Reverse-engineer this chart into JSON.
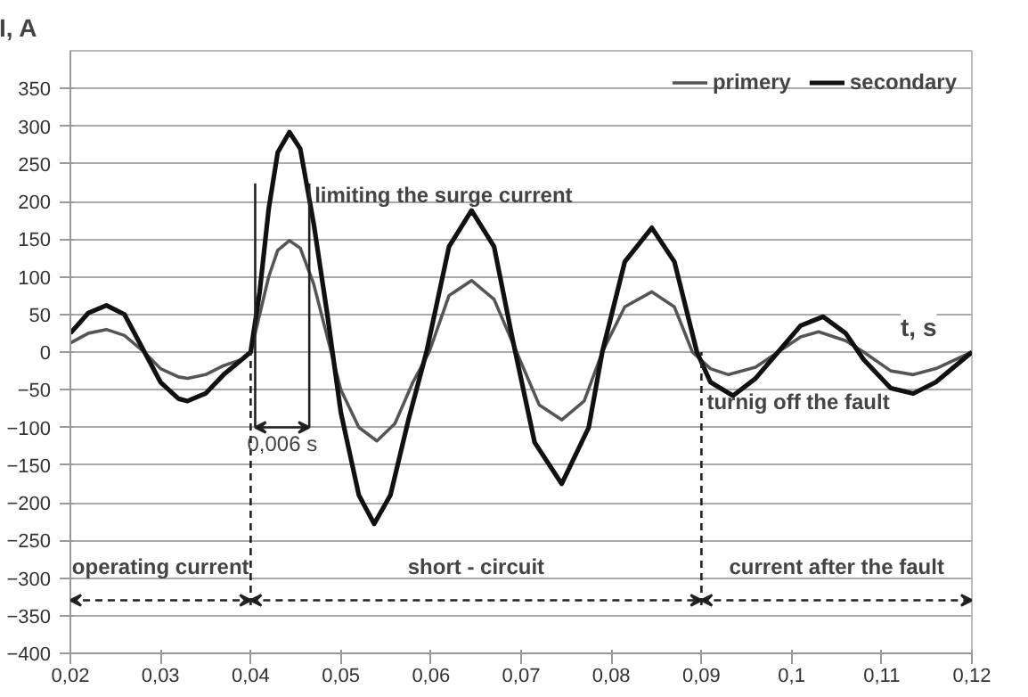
{
  "chart_data": {
    "type": "line",
    "xlabel": "t, s",
    "ylabel": "I, A",
    "xlim": [
      0.02,
      0.12
    ],
    "ylim": [
      -400,
      400
    ],
    "xticks": [
      {
        "value": 0.02,
        "label": "0,02"
      },
      {
        "value": 0.03,
        "label": "0,03"
      },
      {
        "value": 0.04,
        "label": "0,04"
      },
      {
        "value": 0.05,
        "label": "0,05"
      },
      {
        "value": 0.06,
        "label": "0,06"
      },
      {
        "value": 0.07,
        "label": "0,07"
      },
      {
        "value": 0.08,
        "label": "0,08"
      },
      {
        "value": 0.09,
        "label": "0,09"
      },
      {
        "value": 0.1,
        "label": "0,1"
      },
      {
        "value": 0.11,
        "label": "0,11"
      },
      {
        "value": 0.12,
        "label": "0,12"
      }
    ],
    "yticks": [
      -400,
      -350,
      -300,
      -250,
      -200,
      -150,
      -100,
      -50,
      0,
      50,
      100,
      150,
      200,
      250,
      300,
      350
    ],
    "grid": "y",
    "legend": "top right",
    "marker": "none",
    "line_style": "solid",
    "series": [
      {
        "name": "primery",
        "color": "#555555",
        "x": [
          0.02,
          0.022,
          0.024,
          0.026,
          0.028,
          0.03,
          0.032,
          0.033,
          0.035,
          0.037,
          0.039,
          0.04,
          0.041,
          0.042,
          0.043,
          0.0443,
          0.0455,
          0.047,
          0.0485,
          0.05,
          0.052,
          0.054,
          0.056,
          0.058,
          0.0598,
          0.062,
          0.0645,
          0.067,
          0.0695,
          0.072,
          0.0745,
          0.077,
          0.079,
          0.0815,
          0.0845,
          0.087,
          0.089,
          0.091,
          0.093,
          0.096,
          0.0985,
          0.101,
          0.103,
          0.106,
          0.108,
          0.111,
          0.1135,
          0.116,
          0.12
        ],
        "values": [
          12,
          25,
          30,
          22,
          2,
          -22,
          -33,
          -35,
          -30,
          -18,
          -10,
          0,
          50,
          100,
          135,
          148,
          138,
          90,
          20,
          -50,
          -100,
          -118,
          -95,
          -40,
          0,
          75,
          95,
          70,
          0,
          -70,
          -90,
          -65,
          0,
          60,
          80,
          60,
          0,
          -22,
          -30,
          -20,
          0,
          20,
          27,
          15,
          0,
          -25,
          -30,
          -22,
          0
        ]
      },
      {
        "name": "secondary",
        "color": "#111111",
        "x": [
          0.02,
          0.022,
          0.024,
          0.026,
          0.028,
          0.03,
          0.032,
          0.033,
          0.035,
          0.037,
          0.039,
          0.04,
          0.041,
          0.042,
          0.043,
          0.0443,
          0.0455,
          0.047,
          0.0485,
          0.05,
          0.052,
          0.0537,
          0.0555,
          0.0575,
          0.0595,
          0.062,
          0.0645,
          0.067,
          0.069,
          0.0715,
          0.0745,
          0.0775,
          0.079,
          0.0815,
          0.0845,
          0.087,
          0.0895,
          0.091,
          0.0935,
          0.096,
          0.0985,
          0.101,
          0.1035,
          0.106,
          0.108,
          0.111,
          0.1135,
          0.116,
          0.12
        ],
        "values": [
          25,
          52,
          62,
          50,
          5,
          -40,
          -62,
          -65,
          -55,
          -30,
          -10,
          0,
          80,
          190,
          265,
          292,
          270,
          170,
          50,
          -80,
          -190,
          -228,
          -190,
          -90,
          0,
          140,
          188,
          140,
          20,
          -120,
          -175,
          -100,
          0,
          120,
          165,
          120,
          0,
          -40,
          -58,
          -35,
          0,
          35,
          47,
          25,
          -10,
          -48,
          -55,
          -40,
          0
        ]
      }
    ],
    "ref_lines": [
      {
        "axis": "x",
        "value": 0.04,
        "line_style": "dashed"
      },
      {
        "axis": "x",
        "value": 0.09,
        "line_style": "dashed"
      },
      {
        "axis": "x",
        "value": 0.0405,
        "line_style": "solid"
      },
      {
        "axis": "x",
        "value": 0.0465,
        "line_style": "solid"
      }
    ],
    "annotations": [
      {
        "text": "limiting the surge current",
        "x": 0.0465,
        "y": 225
      },
      {
        "text": "turnig off the fault",
        "x": 0.09,
        "y": -50
      },
      "operating current",
      "short - circuit",
      "current after the fault",
      "0,006 s"
    ]
  }
}
